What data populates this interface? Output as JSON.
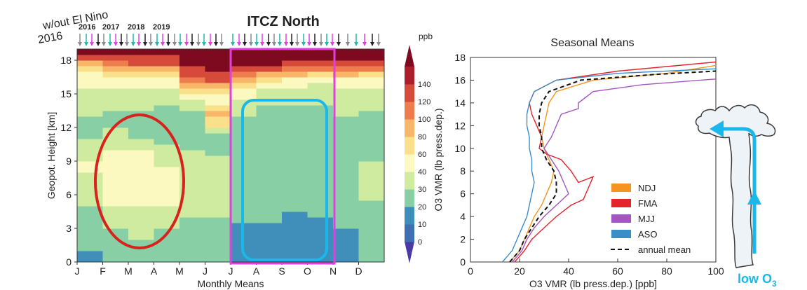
{
  "colors": {
    "itcz_box": "#e040e0",
    "red_ellipse": "#d8221c",
    "blue_box": "#19b7ea",
    "arrow": "#19b7ea",
    "year_2016": "#222222",
    "year_2017": "#8a8a8a",
    "year_2018": "#e040e0",
    "year_2019": "#22b8a8"
  },
  "labels": {
    "wout_line1": "w/out El Nino",
    "wout_line2": "2016",
    "year_2016": "2016",
    "year_2017": "2017",
    "year_2018": "2018",
    "year_2019": "2019",
    "itcz": "ITCZ North",
    "low_o3_prefix": "low O",
    "low_o3_sub": "3"
  },
  "chart_data": [
    {
      "type": "heatmap",
      "title": "",
      "xlabel": "Monthly Means",
      "ylabel": "Geopot. Height [km]",
      "x_ticks": [
        "J",
        "F",
        "M",
        "A",
        "M",
        "J",
        "J",
        "A",
        "S",
        "O",
        "N",
        "D"
      ],
      "ylim": [
        0,
        19
      ],
      "y_ticks": [
        0,
        3,
        6,
        9,
        12,
        15,
        18
      ],
      "colorbar": {
        "unit": "ppb",
        "ticks": [
          0,
          10,
          20,
          30,
          40,
          60,
          80,
          100,
          120,
          140
        ],
        "colors": [
          "#4a3aa6",
          "#3f6fb3",
          "#3f8fba",
          "#88cfa5",
          "#cfeba0",
          "#fbf8c0",
          "#fbe08c",
          "#f8b668",
          "#ee7d4e",
          "#d64a3a",
          "#ad1f2b",
          "#7e0a1f"
        ]
      },
      "height_bins_km": [
        0,
        0.5,
        1,
        1.5,
        2,
        2.5,
        3,
        3.5,
        4,
        4.5,
        5,
        5.5,
        6,
        6.5,
        7,
        7.5,
        8,
        8.5,
        9,
        9.5,
        10,
        10.5,
        11,
        11.5,
        12,
        12.5,
        13,
        13.5,
        14,
        14.5,
        15,
        15.5,
        16,
        16.5,
        17,
        17.5,
        18,
        18.5
      ],
      "monthly_profiles_ppb": [
        [
          18,
          18,
          20,
          20,
          22,
          22,
          25,
          25,
          28,
          28,
          30,
          30,
          32,
          32,
          32,
          35,
          40,
          40,
          38,
          35,
          30,
          30,
          28,
          28,
          28,
          28,
          30,
          30,
          32,
          32,
          35,
          40,
          45,
          55,
          70,
          95,
          120,
          140
        ],
        [
          22,
          22,
          25,
          25,
          28,
          28,
          35,
          35,
          38,
          38,
          40,
          40,
          42,
          42,
          42,
          44,
          45,
          45,
          44,
          42,
          38,
          35,
          32,
          30,
          28,
          28,
          28,
          30,
          30,
          32,
          35,
          40,
          48,
          60,
          80,
          110,
          130,
          140
        ],
        [
          25,
          25,
          28,
          28,
          30,
          30,
          33,
          33,
          36,
          38,
          40,
          42,
          43,
          44,
          45,
          46,
          45,
          44,
          43,
          40,
          35,
          30,
          28,
          27,
          27,
          28,
          29,
          30,
          31,
          32,
          35,
          40,
          50,
          65,
          90,
          120,
          135,
          140
        ],
        [
          22,
          22,
          25,
          25,
          28,
          28,
          32,
          32,
          35,
          36,
          40,
          42,
          44,
          44,
          43,
          42,
          40,
          38,
          36,
          33,
          30,
          28,
          27,
          27,
          27,
          27,
          28,
          28,
          30,
          32,
          35,
          40,
          50,
          70,
          95,
          120,
          135,
          140
        ],
        [
          20,
          20,
          22,
          22,
          25,
          25,
          28,
          28,
          30,
          32,
          34,
          35,
          36,
          36,
          36,
          35,
          35,
          34,
          33,
          30,
          28,
          26,
          25,
          25,
          25,
          26,
          28,
          30,
          35,
          45,
          60,
          80,
          100,
          120,
          135,
          140,
          140,
          140
        ],
        [
          22,
          22,
          24,
          24,
          26,
          26,
          28,
          28,
          30,
          30,
          31,
          32,
          33,
          33,
          33,
          33,
          32,
          31,
          30,
          29,
          28,
          27,
          28,
          35,
          60,
          75,
          85,
          70,
          55,
          50,
          60,
          90,
          120,
          135,
          140,
          140,
          140,
          140
        ],
        [
          18,
          18,
          18,
          18,
          19,
          19,
          19,
          20,
          20,
          20,
          20,
          20,
          20,
          21,
          21,
          21,
          20,
          20,
          20,
          20,
          24,
          26,
          28,
          28,
          28,
          29,
          30,
          32,
          38,
          45,
          55,
          70,
          90,
          115,
          135,
          140,
          140,
          140
        ],
        [
          19,
          19,
          19,
          19,
          19,
          19,
          19,
          20,
          20,
          20,
          20,
          20,
          20,
          21,
          21,
          21,
          22,
          23,
          24,
          25,
          26,
          26,
          27,
          27,
          28,
          28,
          28,
          29,
          30,
          31,
          35,
          42,
          60,
          90,
          120,
          140,
          140,
          140
        ],
        [
          19,
          19,
          19,
          19,
          19,
          19,
          19,
          19,
          19,
          20,
          20,
          21,
          22,
          23,
          23,
          24,
          24,
          25,
          25,
          26,
          26,
          26,
          27,
          27,
          27,
          28,
          28,
          29,
          30,
          31,
          34,
          40,
          55,
          80,
          110,
          135,
          140,
          140
        ],
        [
          19,
          19,
          19,
          19,
          19,
          19,
          19,
          19,
          20,
          21,
          22,
          23,
          24,
          24,
          25,
          25,
          25,
          26,
          26,
          26,
          26,
          27,
          27,
          27,
          28,
          28,
          29,
          29,
          30,
          31,
          33,
          38,
          50,
          75,
          105,
          130,
          140,
          140
        ],
        [
          19,
          19,
          19,
          19,
          19,
          19,
          20,
          20,
          20,
          21,
          22,
          22,
          23,
          24,
          24,
          24,
          25,
          25,
          26,
          26,
          27,
          27,
          28,
          28,
          28,
          29,
          30,
          30,
          31,
          32,
          35,
          40,
          55,
          80,
          110,
          135,
          140,
          140
        ],
        [
          20,
          20,
          22,
          22,
          24,
          24,
          26,
          26,
          28,
          28,
          29,
          30,
          32,
          32,
          32,
          32,
          31,
          30,
          29,
          28,
          27,
          27,
          27,
          27,
          28,
          28,
          29,
          30,
          31,
          32,
          35,
          42,
          55,
          75,
          100,
          125,
          140,
          140
        ]
      ],
      "annotations": {
        "itcz_north_months": [
          "J",
          "A",
          "S",
          "O",
          "N"
        ],
        "red_ellipse_region": {
          "months": "F–A",
          "height_km": [
            1.5,
            13
          ]
        },
        "blue_box_region": {
          "months": "A–O",
          "height_km": [
            0.5,
            14.5
          ]
        }
      }
    },
    {
      "type": "line",
      "title": "Seasonal Means",
      "xlabel": "O3 VMR (lb press.dep.) [ppb]",
      "ylabel": "O3 VMR (lb press.dep.)",
      "xlim": [
        0,
        100
      ],
      "ylim": [
        0,
        18
      ],
      "x_ticks": [
        0,
        20,
        40,
        60,
        80,
        100
      ],
      "y_ticks": [
        0,
        2,
        4,
        6,
        8,
        10,
        12,
        14,
        16,
        18
      ],
      "legend_position": "lower-right",
      "series": [
        {
          "name": "NDJ",
          "color": "#f59420",
          "style": "solid",
          "points": [
            [
              16,
              0
            ],
            [
              18,
              0.5
            ],
            [
              20,
              1
            ],
            [
              22,
              2
            ],
            [
              24,
              3
            ],
            [
              26,
              4
            ],
            [
              29,
              5
            ],
            [
              31,
              6
            ],
            [
              33,
              7
            ],
            [
              34,
              8
            ],
            [
              32,
              9
            ],
            [
              30,
              10
            ],
            [
              29,
              11
            ],
            [
              30,
              12
            ],
            [
              31,
              13
            ],
            [
              32,
              14
            ],
            [
              35,
              15
            ],
            [
              50,
              16
            ],
            [
              80,
              16.6
            ],
            [
              100,
              17.3
            ]
          ]
        },
        {
          "name": "FMA",
          "color": "#e5232a",
          "style": "solid",
          "points": [
            [
              18,
              0
            ],
            [
              20,
              0.5
            ],
            [
              22,
              1
            ],
            [
              25,
              2
            ],
            [
              30,
              3
            ],
            [
              35,
              4
            ],
            [
              41,
              5
            ],
            [
              46,
              5.5
            ],
            [
              48,
              6.5
            ],
            [
              50,
              7.5
            ],
            [
              44,
              7
            ],
            [
              41,
              8
            ],
            [
              37,
              9
            ],
            [
              31,
              9.5
            ],
            [
              28,
              10
            ],
            [
              29,
              11
            ],
            [
              27,
              12
            ],
            [
              25,
              13
            ],
            [
              24,
              14
            ],
            [
              26,
              15
            ],
            [
              35,
              16
            ],
            [
              60,
              16.8
            ],
            [
              100,
              17.6
            ]
          ]
        },
        {
          "name": "MJJ",
          "color": "#a455c0",
          "style": "solid",
          "points": [
            [
              17,
              0
            ],
            [
              19,
              0.5
            ],
            [
              21,
              1
            ],
            [
              23,
              2
            ],
            [
              26,
              3
            ],
            [
              30,
              4
            ],
            [
              35,
              5
            ],
            [
              40,
              6
            ],
            [
              38,
              7
            ],
            [
              36,
              8
            ],
            [
              33,
              9
            ],
            [
              30,
              10
            ],
            [
              33,
              11
            ],
            [
              35,
              12
            ],
            [
              37,
              13
            ],
            [
              44,
              13.5
            ],
            [
              44,
              14
            ],
            [
              50,
              15
            ],
            [
              70,
              15.6
            ],
            [
              100,
              16.1
            ]
          ]
        },
        {
          "name": "ASO",
          "color": "#3b8dc8",
          "style": "solid",
          "points": [
            [
              13,
              0
            ],
            [
              15,
              0.5
            ],
            [
              17,
              1
            ],
            [
              19,
              2
            ],
            [
              21,
              3
            ],
            [
              23,
              4
            ],
            [
              24,
              5
            ],
            [
              25,
              6
            ],
            [
              26,
              7
            ],
            [
              25,
              8
            ],
            [
              25,
              9
            ],
            [
              24,
              10
            ],
            [
              24,
              11
            ],
            [
              23,
              12
            ],
            [
              23,
              13
            ],
            [
              24,
              14
            ],
            [
              26,
              15
            ],
            [
              35,
              16
            ],
            [
              60,
              16.6
            ],
            [
              100,
              17
            ]
          ]
        },
        {
          "name": "annual mean",
          "color": "#111111",
          "style": "dashed",
          "points": [
            [
              16,
              0
            ],
            [
              18,
              0.5
            ],
            [
              20,
              1
            ],
            [
              22,
              2
            ],
            [
              25,
              3
            ],
            [
              28,
              4
            ],
            [
              32,
              5
            ],
            [
              35,
              6
            ],
            [
              35,
              7
            ],
            [
              34,
              8
            ],
            [
              31,
              9
            ],
            [
              29,
              10
            ],
            [
              29,
              11
            ],
            [
              28,
              12
            ],
            [
              28,
              13
            ],
            [
              29,
              14
            ],
            [
              32,
              15
            ],
            [
              45,
              16
            ],
            [
              75,
              16.5
            ],
            [
              100,
              16.8
            ]
          ]
        }
      ]
    }
  ]
}
